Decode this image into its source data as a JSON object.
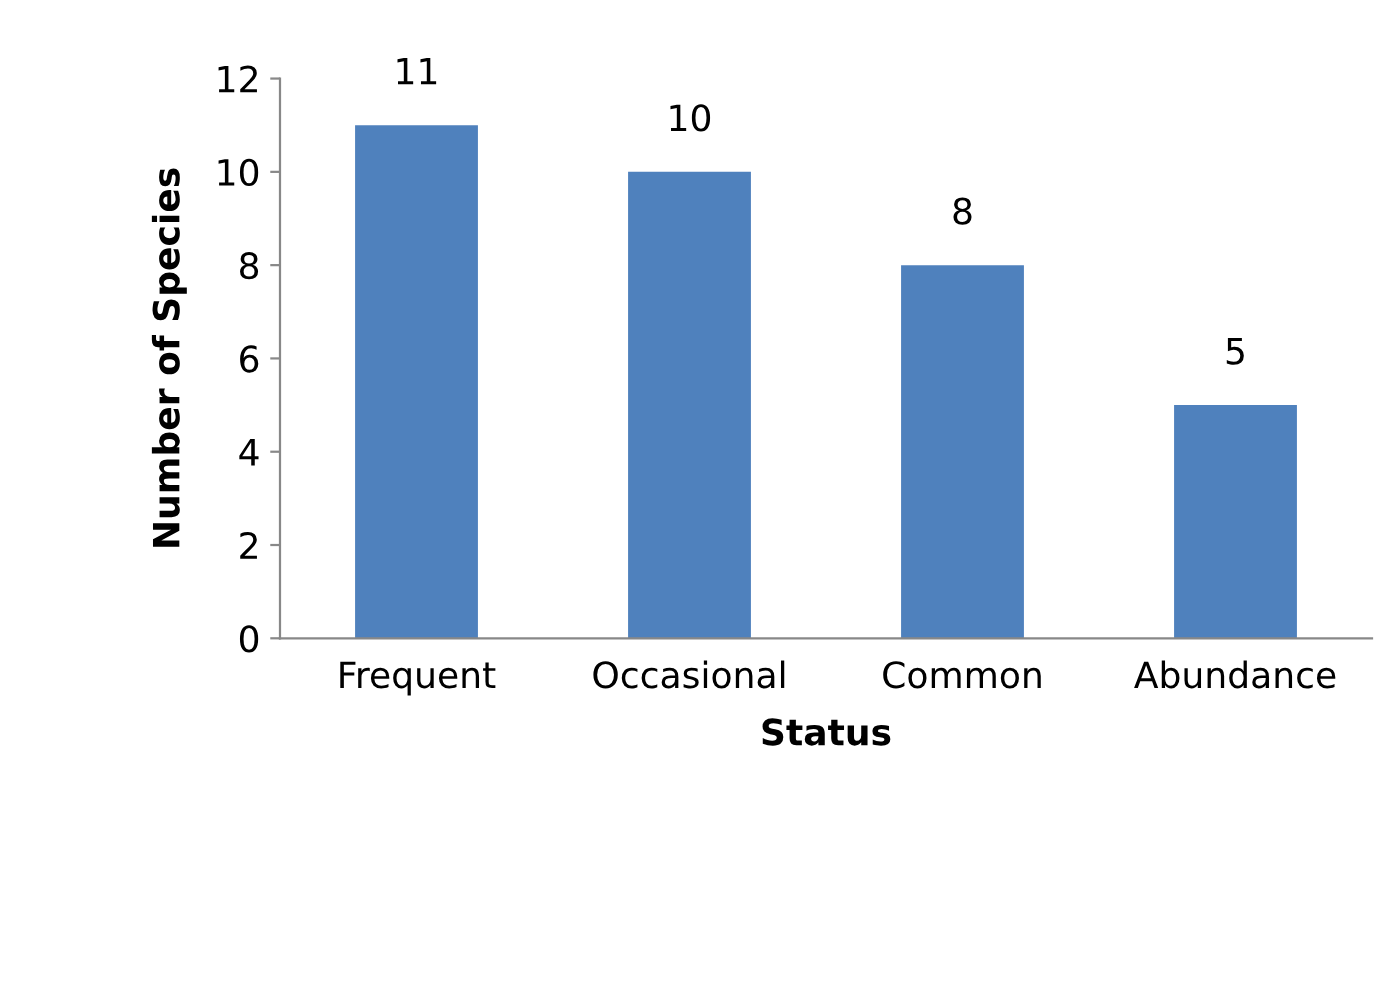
{
  "chart_data": {
    "type": "bar",
    "xlabel": "Status",
    "ylabel": "Number of Species",
    "categories": [
      "Frequent",
      "Occasional",
      "Common",
      "Abundance"
    ],
    "values": [
      11,
      10,
      8,
      5
    ],
    "color": "#4f81bd",
    "ylim": [
      0,
      12
    ],
    "yticks": [
      0,
      2,
      4,
      6,
      8,
      10,
      12
    ],
    "grid": false,
    "data_labels": true
  }
}
